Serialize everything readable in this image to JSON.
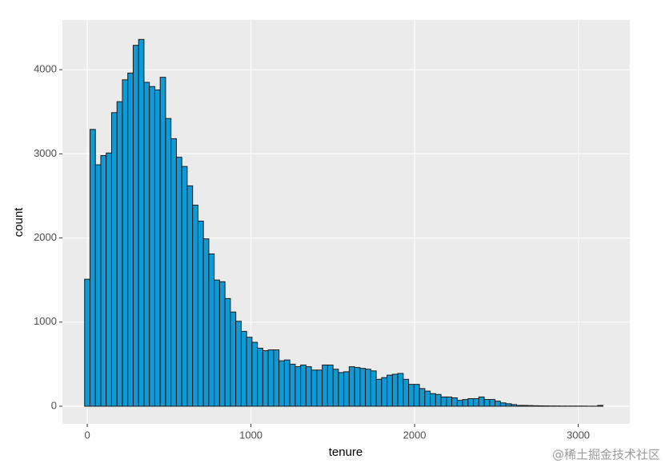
{
  "chart_data": {
    "type": "histogram",
    "xlabel": "tenure",
    "ylabel": "count",
    "watermark": "@稀土掘金技术社区",
    "color": "#0f9ad6",
    "edgecolor": "#1a1a1a",
    "grid": true,
    "xlim": [
      -152,
      3315
    ],
    "ylim": [
      -209,
      4591
    ],
    "xticks": [
      0,
      1000,
      2000,
      3000
    ],
    "yticks": [
      0,
      1000,
      2000,
      3000,
      4000
    ],
    "bins": [
      -16.5,
      16.5,
      49.5,
      82.5,
      115.5,
      148.5,
      181.5,
      214.5,
      247.5,
      280.5,
      313.5,
      346.5,
      379.5,
      412.5,
      445.5,
      478.5,
      511.5,
      544.5,
      577.5,
      610.5,
      643.5,
      676.5,
      709.5,
      742.5,
      775.5,
      808.5,
      841.5,
      874.5,
      907.5,
      940.5,
      973.5,
      1006.5,
      1039.5,
      1072.5,
      1105.5,
      1138.5,
      1171.5,
      1204.5,
      1237.5,
      1270.5,
      1303.5,
      1336.5,
      1369.5,
      1402.5,
      1435.5,
      1468.5,
      1501.5,
      1534.5,
      1567.5,
      1600.5,
      1633.5,
      1666.5,
      1699.5,
      1732.5,
      1765.5,
      1798.5,
      1831.5,
      1864.5,
      1897.5,
      1930.5,
      1963.5,
      1996.5,
      2029.5,
      2062.5,
      2095.5,
      2128.5,
      2161.5,
      2194.5,
      2227.5,
      2260.5,
      2293.5,
      2326.5,
      2359.5,
      2392.5,
      2425.5,
      2458.5,
      2491.5,
      2524.5,
      2557.5,
      2590.5,
      2623.5,
      2656.5,
      2689.5,
      2722.5,
      2755.5,
      2788.5,
      2821.5,
      2854.5,
      2887.5,
      2920.5,
      2953.5,
      2986.5,
      3019.5,
      3052.5,
      3085.5,
      3118.5,
      3151.5
    ],
    "values": [
      1510,
      3290,
      2870,
      2980,
      3010,
      3490,
      3620,
      3880,
      3960,
      4290,
      4360,
      3850,
      3800,
      3760,
      3910,
      3420,
      3180,
      2960,
      2850,
      2620,
      2390,
      2200,
      1990,
      1810,
      1500,
      1480,
      1280,
      1120,
      1010,
      890,
      820,
      760,
      690,
      660,
      670,
      670,
      540,
      550,
      500,
      470,
      490,
      470,
      430,
      430,
      490,
      490,
      440,
      400,
      410,
      470,
      460,
      450,
      440,
      420,
      320,
      340,
      370,
      380,
      390,
      320,
      260,
      260,
      210,
      180,
      150,
      140,
      110,
      110,
      100,
      70,
      80,
      90,
      90,
      110,
      80,
      80,
      60,
      40,
      30,
      20,
      10,
      10,
      8,
      6,
      5,
      4,
      3,
      3,
      2,
      2,
      2,
      2,
      2,
      1,
      1,
      10
    ]
  }
}
